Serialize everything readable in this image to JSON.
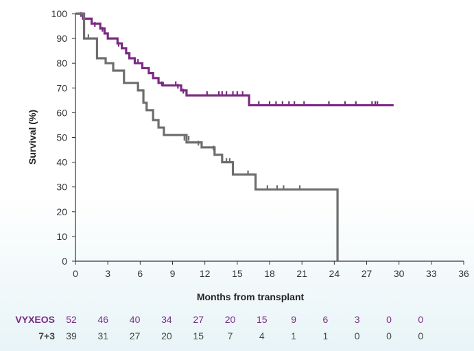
{
  "chart_data": {
    "type": "line",
    "title": "",
    "xlabel": "Months from transplant",
    "ylabel": "Survival (%)",
    "xlim": [
      0,
      36
    ],
    "ylim": [
      0,
      100
    ],
    "x_ticks": [
      "0",
      "3",
      "6",
      "9",
      "12",
      "15",
      "18",
      "21",
      "24",
      "27",
      "30",
      "33",
      "36"
    ],
    "y_ticks": [
      "0",
      "10",
      "20",
      "30",
      "40",
      "50",
      "60",
      "70",
      "80",
      "90",
      "100"
    ],
    "grid": false,
    "series": [
      {
        "name": "VYXEOS",
        "color": "#7b2a83",
        "steps": [
          [
            0,
            100
          ],
          [
            0.7,
            98
          ],
          [
            1.5,
            96
          ],
          [
            2.3,
            94
          ],
          [
            2.7,
            92
          ],
          [
            3.0,
            90
          ],
          [
            3.9,
            88
          ],
          [
            4.3,
            86
          ],
          [
            4.7,
            84
          ],
          [
            5.0,
            82
          ],
          [
            5.5,
            80
          ],
          [
            6.2,
            78
          ],
          [
            6.8,
            76
          ],
          [
            7.2,
            74
          ],
          [
            7.7,
            72
          ],
          [
            8.1,
            71
          ],
          [
            9.8,
            69
          ],
          [
            10.3,
            67
          ],
          [
            16.1,
            63
          ],
          [
            29.5,
            63
          ]
        ],
        "censors": [
          [
            0.5,
            99
          ],
          [
            1.8,
            95
          ],
          [
            2.5,
            93
          ],
          [
            4.0,
            87
          ],
          [
            5.8,
            80
          ],
          [
            8.0,
            71
          ],
          [
            9.3,
            71
          ],
          [
            9.5,
            70
          ],
          [
            10.0,
            68
          ],
          [
            12.2,
            67
          ],
          [
            13.3,
            67
          ],
          [
            13.6,
            67
          ],
          [
            14.0,
            67
          ],
          [
            14.6,
            67
          ],
          [
            15.0,
            67
          ],
          [
            15.5,
            67
          ],
          [
            17.0,
            63
          ],
          [
            18.0,
            63
          ],
          [
            18.6,
            63
          ],
          [
            19.2,
            63
          ],
          [
            19.8,
            63
          ],
          [
            20.3,
            63
          ],
          [
            21.2,
            63
          ],
          [
            23.5,
            63
          ],
          [
            25.0,
            63
          ],
          [
            26.0,
            63
          ],
          [
            27.5,
            63
          ],
          [
            27.8,
            63
          ],
          [
            28.0,
            63
          ]
        ]
      },
      {
        "name": "7+3",
        "color": "#6d6d6d",
        "steps": [
          [
            0,
            100
          ],
          [
            0.8,
            90
          ],
          [
            2.0,
            82
          ],
          [
            2.8,
            80
          ],
          [
            3.5,
            77
          ],
          [
            4.5,
            72
          ],
          [
            5.8,
            69
          ],
          [
            6.3,
            64
          ],
          [
            6.6,
            61
          ],
          [
            7.2,
            57
          ],
          [
            7.7,
            54
          ],
          [
            8.2,
            51
          ],
          [
            10.3,
            48
          ],
          [
            11.7,
            46
          ],
          [
            12.9,
            43
          ],
          [
            13.6,
            40
          ],
          [
            14.6,
            35
          ],
          [
            16.7,
            29
          ],
          [
            24.3,
            29
          ],
          [
            24.3,
            0
          ]
        ],
        "censors": [
          [
            1.2,
            90
          ],
          [
            10.1,
            49
          ],
          [
            10.5,
            49
          ],
          [
            11.4,
            47
          ],
          [
            12.8,
            45
          ],
          [
            14.0,
            40
          ],
          [
            14.3,
            40
          ],
          [
            16.0,
            35
          ],
          [
            17.8,
            29
          ],
          [
            18.7,
            29
          ],
          [
            19.3,
            29
          ],
          [
            20.8,
            29
          ]
        ]
      }
    ]
  },
  "risk_table": {
    "rows": [
      {
        "label": "VYXEOS",
        "color": "#7b2a83",
        "counts": [
          "52",
          "46",
          "40",
          "34",
          "27",
          "20",
          "15",
          "9",
          "6",
          "3",
          "0",
          "0"
        ]
      },
      {
        "label": "7+3",
        "color": "#444444",
        "counts": [
          "39",
          "31",
          "27",
          "20",
          "15",
          "7",
          "4",
          "1",
          "1",
          "0",
          "0",
          "0"
        ]
      }
    ]
  }
}
